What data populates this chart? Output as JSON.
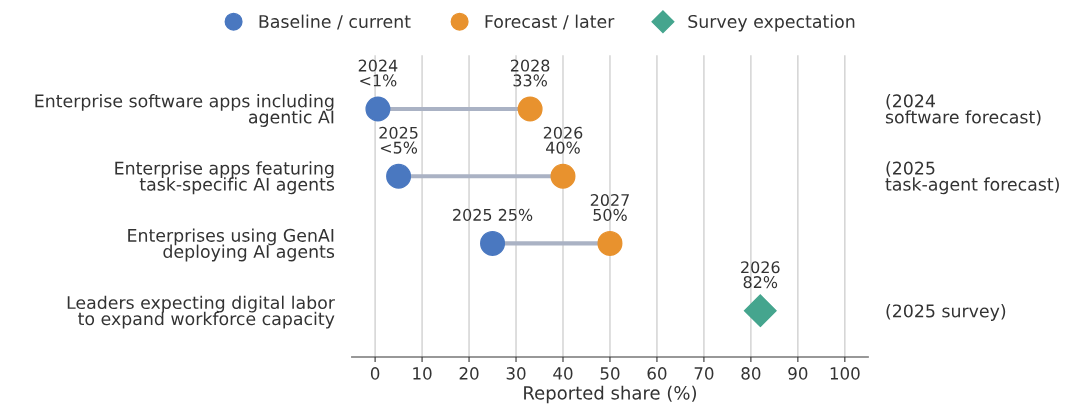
{
  "chart_data": {
    "type": "scatter",
    "orientation": "horizontal",
    "categories": [
      "Enterprise software apps including\nagentic AI",
      "Enterprise apps featuring\ntask-specific AI agents",
      "Enterprises using GenAI\ndeploying AI agents",
      "Leaders expecting digital labor\nto expand workforce capacity"
    ],
    "y2_categories": [
      "(2024\nsoftware forecast)",
      "(2025\ntask-agent forecast)",
      null,
      "(2025 survey)"
    ],
    "series": [
      {
        "name": "Baseline / current",
        "color": "#4a78c0",
        "marker": "circle",
        "values": [
          0.6,
          5,
          25,
          null
        ],
        "value_labels": [
          "2024\n<1%",
          "2025\n<5%",
          "2025 25%",
          null
        ]
      },
      {
        "name": "Forecast / later",
        "color": "#e8922e",
        "marker": "circle",
        "values": [
          33,
          40,
          50,
          null
        ],
        "value_labels": [
          "2028\n33%",
          "2026\n40%",
          "2027\n50%",
          null
        ]
      },
      {
        "name": "Survey expectation",
        "color": "#45a58e",
        "marker": "diamond",
        "values": [
          null,
          null,
          null,
          82
        ],
        "value_labels": [
          null,
          null,
          null,
          "2026\n82%"
        ]
      }
    ],
    "xlabel": "Reported share (%)",
    "xlim": [
      -5,
      105
    ],
    "xticks": [
      0,
      10,
      20,
      30,
      40,
      50,
      60,
      70,
      80,
      90,
      100
    ],
    "grid": "x",
    "legend": "top"
  }
}
